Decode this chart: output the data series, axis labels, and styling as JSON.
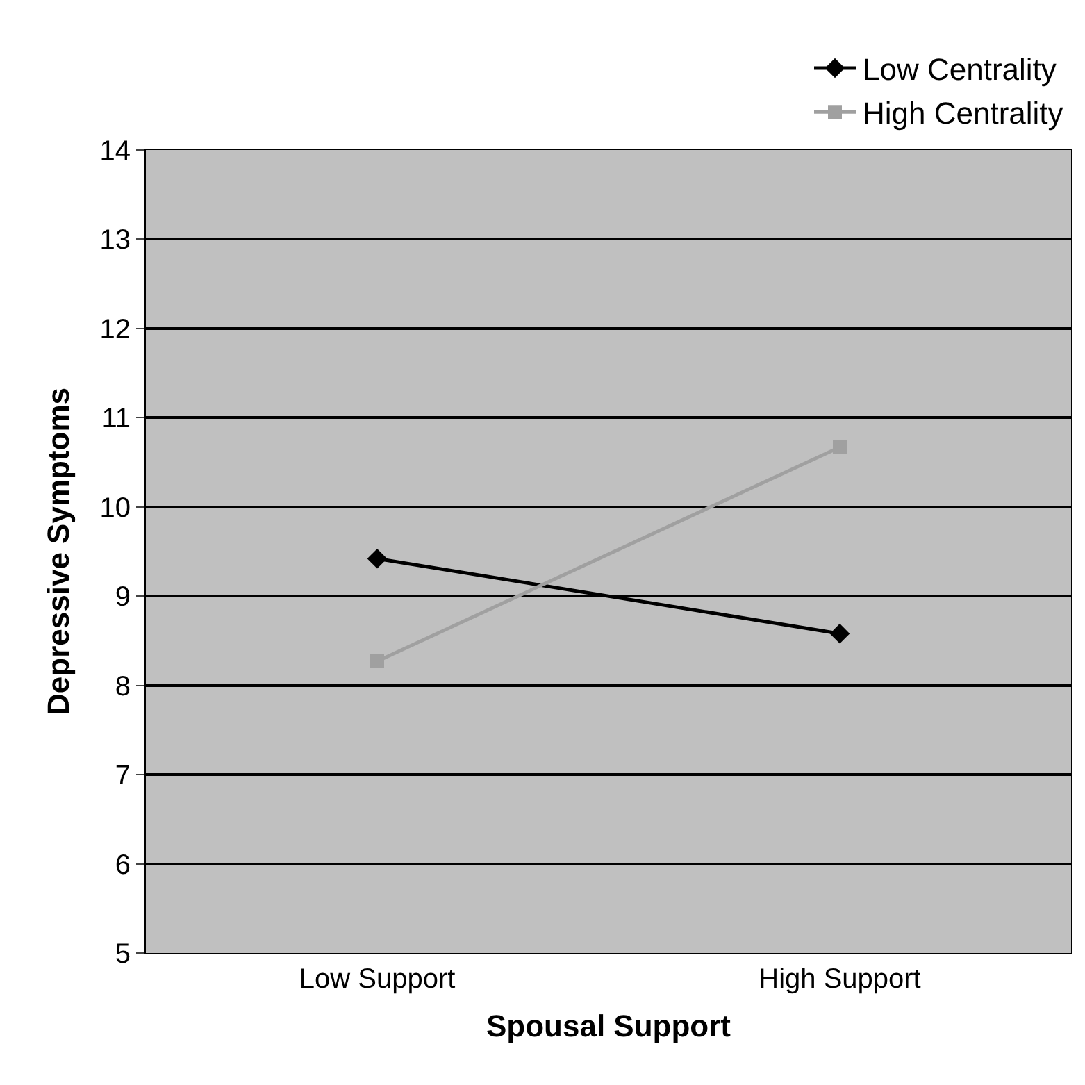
{
  "chart_data": {
    "type": "line",
    "xlabel": "Spousal Support",
    "ylabel": "Depressive Symptoms",
    "categories": [
      "Low Support",
      "High Support"
    ],
    "series": [
      {
        "name": "Low Centrality",
        "color": "#000000",
        "marker": "diamond",
        "values": [
          9.42,
          8.58
        ]
      },
      {
        "name": "High Centrality",
        "color": "#a0a0a0",
        "marker": "square",
        "values": [
          8.27,
          10.67
        ]
      }
    ],
    "ylim": [
      5,
      14
    ],
    "yticks": [
      5,
      6,
      7,
      8,
      9,
      10,
      11,
      12,
      13,
      14
    ],
    "grid": "y",
    "legend": "top right",
    "line_style": "solid"
  }
}
